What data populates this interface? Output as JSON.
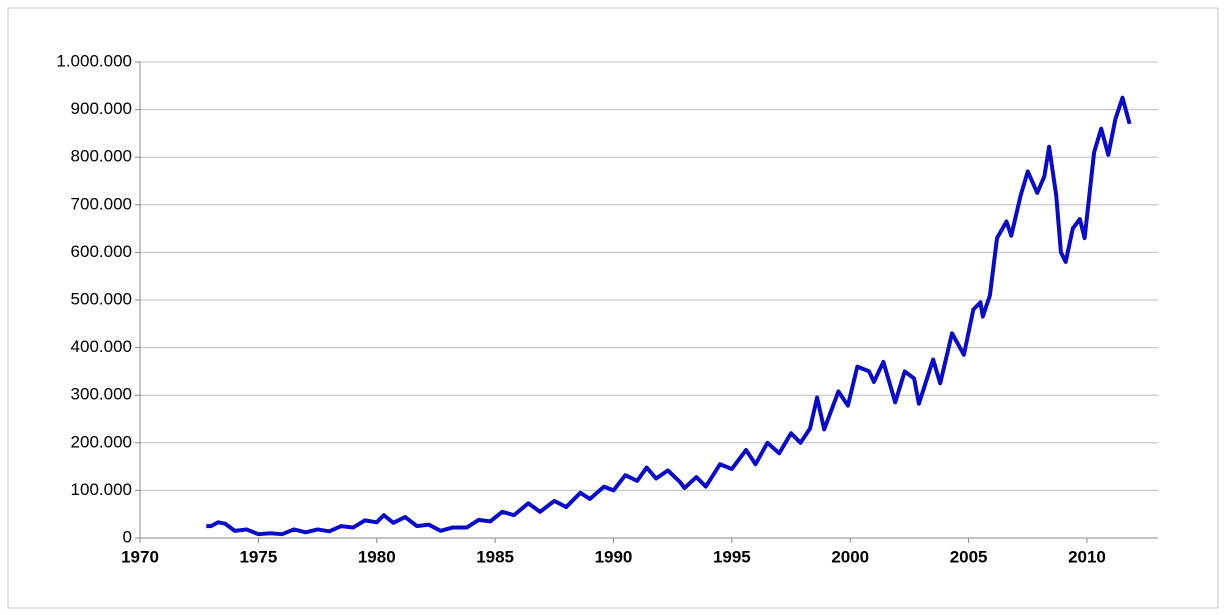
{
  "chart_data": {
    "type": "line",
    "x": [
      1972.8,
      1973.0,
      1973.3,
      1973.6,
      1974.0,
      1974.5,
      1975.0,
      1975.5,
      1976.0,
      1976.5,
      1977.0,
      1977.5,
      1978.0,
      1978.5,
      1979.0,
      1979.5,
      1980.0,
      1980.3,
      1980.7,
      1981.2,
      1981.7,
      1982.2,
      1982.7,
      1983.2,
      1983.8,
      1984.3,
      1984.8,
      1985.3,
      1985.8,
      1986.4,
      1986.9,
      1987.5,
      1988.0,
      1988.6,
      1989.0,
      1989.6,
      1990.0,
      1990.5,
      1991.0,
      1991.4,
      1991.8,
      1992.3,
      1992.8,
      1993.0,
      1993.5,
      1993.9,
      1994.5,
      1995.0,
      1995.6,
      1996.0,
      1996.5,
      1997.0,
      1997.5,
      1997.9,
      1998.3,
      1998.6,
      1998.9,
      1999.5,
      1999.9,
      2000.3,
      2000.8,
      2001.0,
      2001.4,
      2001.9,
      2002.3,
      2002.7,
      2002.9,
      2003.5,
      2003.8,
      2004.3,
      2004.8,
      2005.2,
      2005.5,
      2005.6,
      2005.9,
      2006.2,
      2006.6,
      2006.8,
      2007.2,
      2007.5,
      2007.9,
      2008.2,
      2008.4,
      2008.7,
      2008.9,
      2009.1,
      2009.4,
      2009.7,
      2009.9,
      2010.3,
      2010.6,
      2010.9,
      2011.2,
      2011.5,
      2011.8
    ],
    "series": [
      {
        "color": "#0a0acc",
        "values": [
          25000,
          25000,
          33000,
          30000,
          15000,
          18000,
          8000,
          10000,
          8000,
          18000,
          12000,
          18000,
          14000,
          25000,
          22000,
          37000,
          33000,
          48000,
          32000,
          44000,
          25000,
          28000,
          15000,
          22000,
          22000,
          38000,
          35000,
          55000,
          48000,
          73000,
          55000,
          78000,
          65000,
          95000,
          82000,
          108000,
          100000,
          132000,
          120000,
          148000,
          125000,
          142000,
          118000,
          105000,
          128000,
          108000,
          155000,
          145000,
          185000,
          155000,
          200000,
          178000,
          220000,
          200000,
          230000,
          295000,
          228000,
          308000,
          278000,
          360000,
          350000,
          328000,
          370000,
          285000,
          350000,
          335000,
          282000,
          375000,
          325000,
          430000,
          385000,
          480000,
          495000,
          465000,
          510000,
          630000,
          665000,
          635000,
          720000,
          770000,
          725000,
          760000,
          822000,
          720000,
          600000,
          580000,
          650000,
          670000,
          630000,
          810000,
          860000,
          805000,
          880000,
          925000,
          870000
        ]
      }
    ],
    "xlim": [
      1970,
      2013
    ],
    "xticks": [
      1970,
      1975,
      1980,
      1985,
      1990,
      1995,
      2000,
      2005,
      2010
    ],
    "ylim": [
      0,
      1000000
    ],
    "yticks": [
      0,
      {
        "value": 100000,
        "label": "100.000"
      },
      {
        "value": 200000,
        "label": "200.000"
      },
      {
        "value": 300000,
        "label": "300.000"
      },
      {
        "value": 400000,
        "label": "400.000"
      },
      {
        "value": 500000,
        "label": "500.000"
      },
      {
        "value": 600000,
        "label": "600.000"
      },
      {
        "value": 700000,
        "label": "700.000"
      },
      {
        "value": 800000,
        "label": "800.000"
      },
      {
        "value": 900000,
        "label": "900.000"
      },
      {
        "value": 1000000,
        "label": "1.000.000"
      }
    ],
    "grid": true
  }
}
